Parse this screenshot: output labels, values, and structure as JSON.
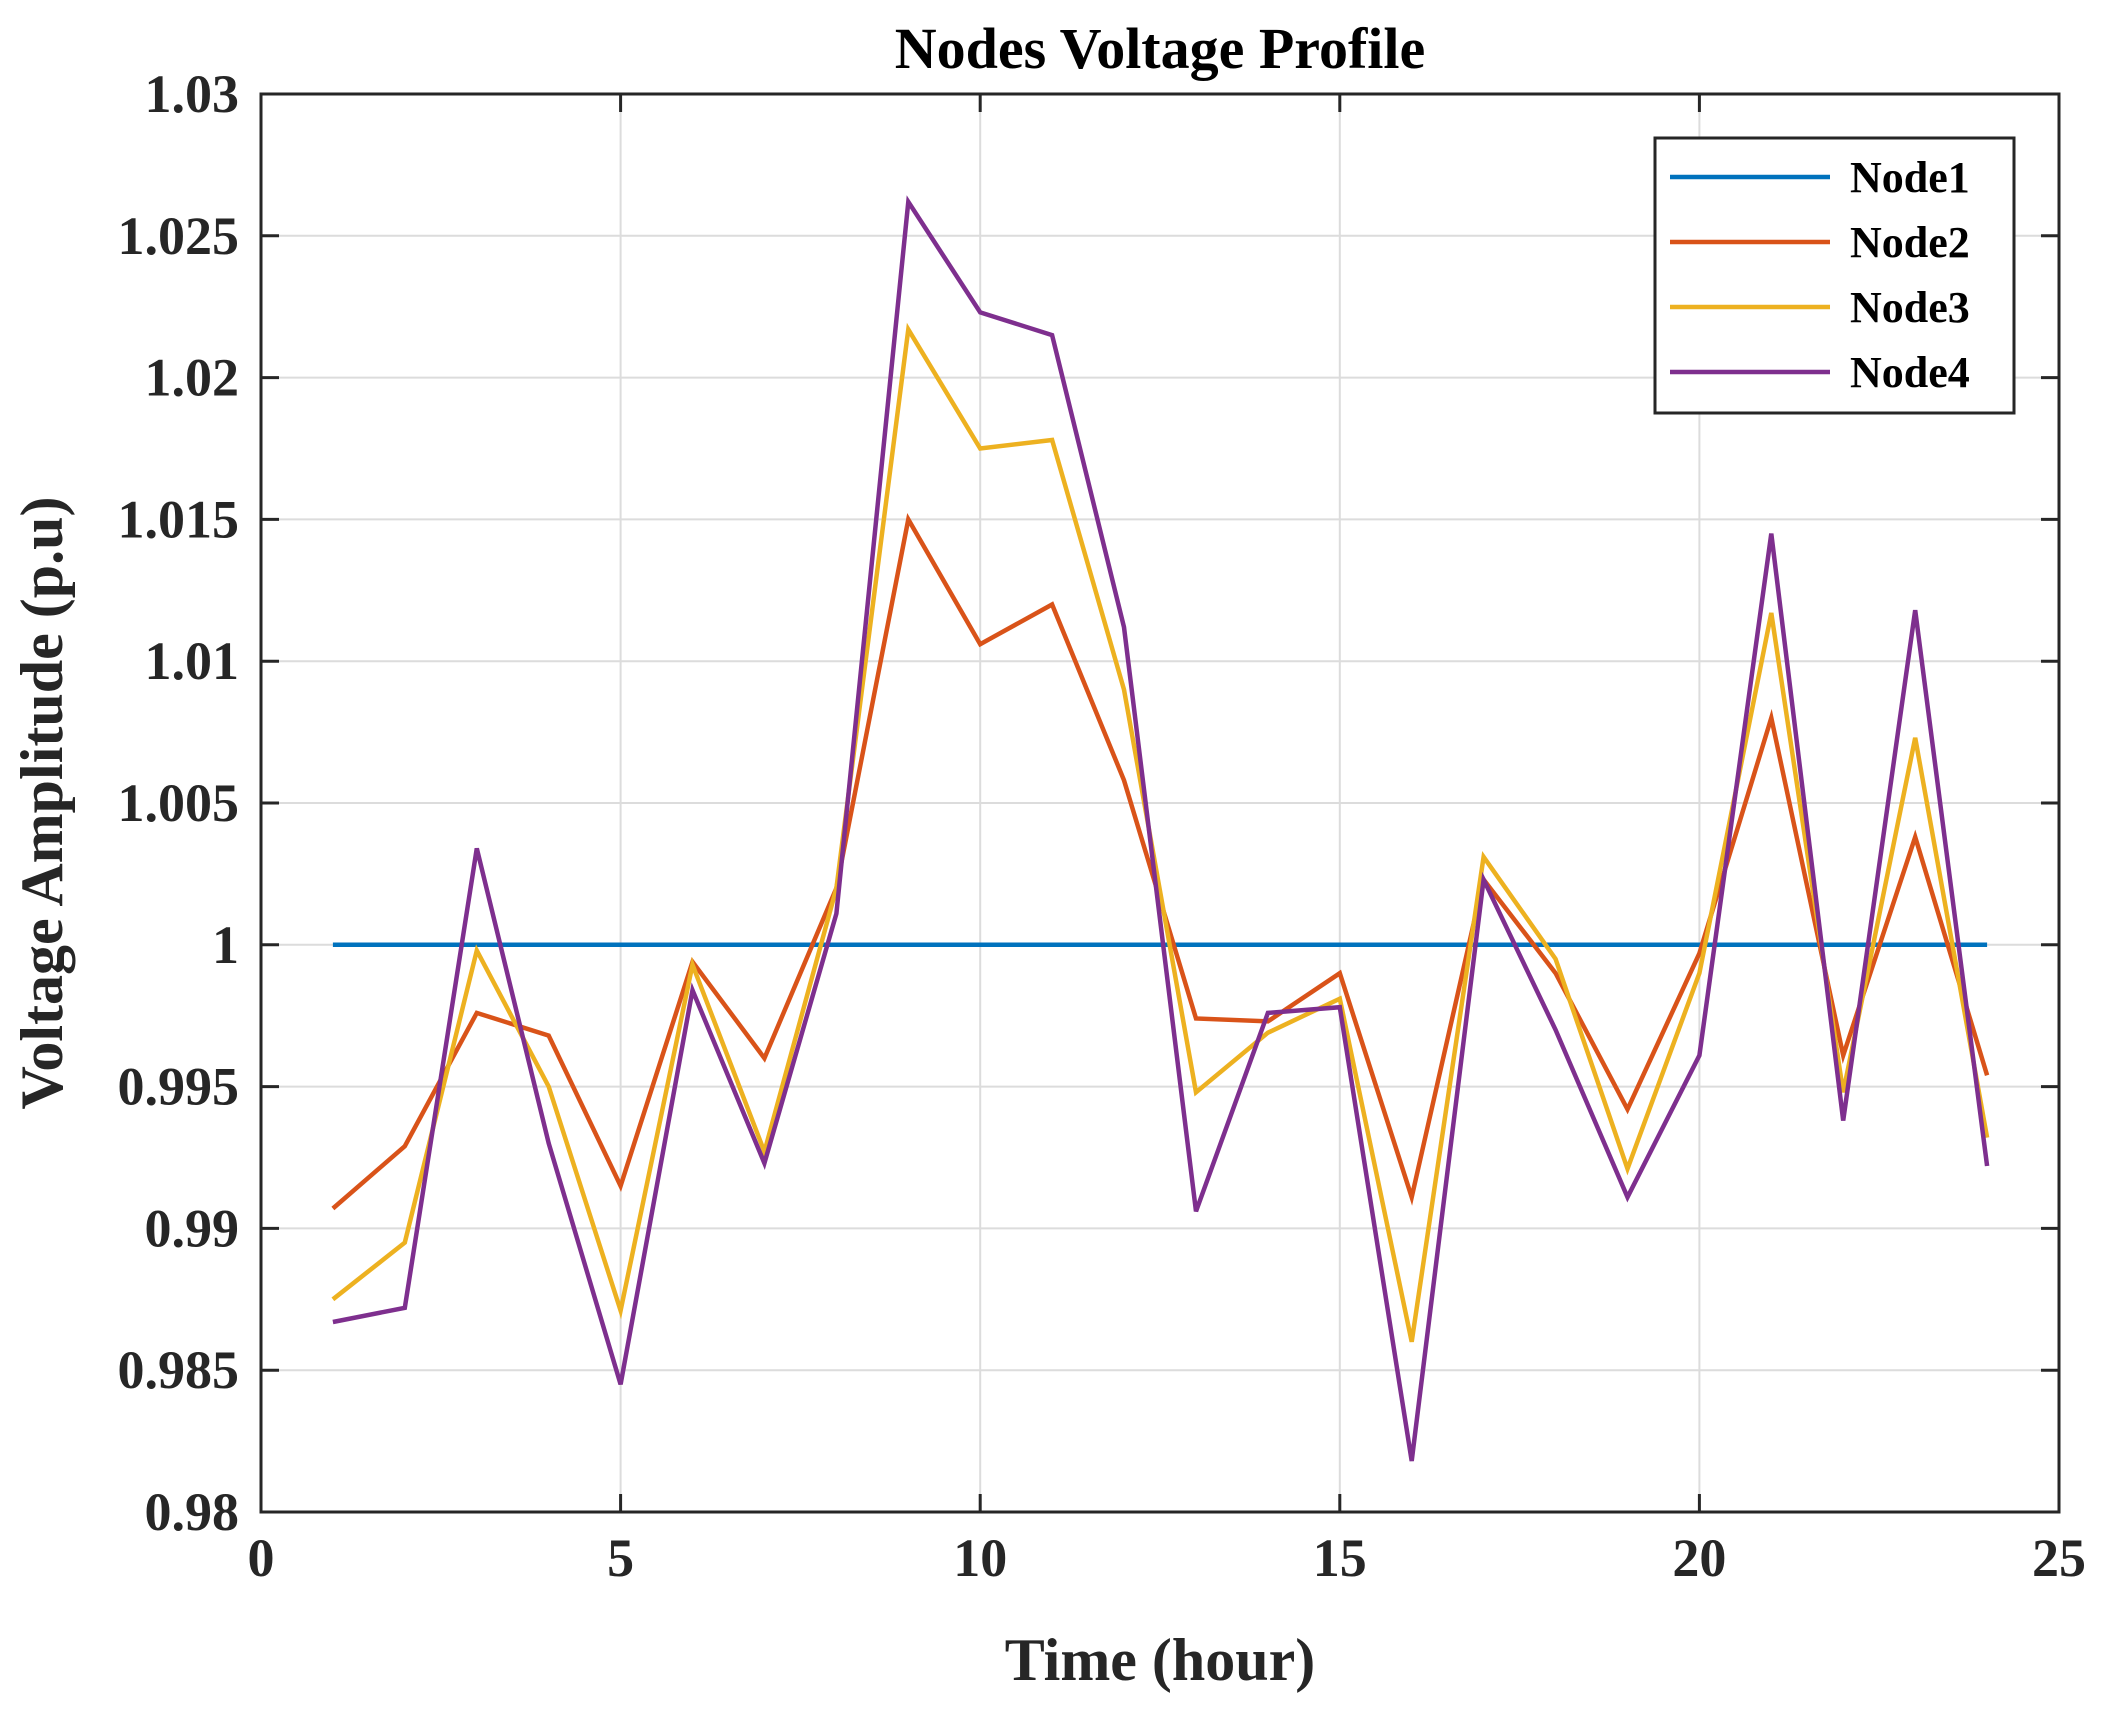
{
  "chart_data": {
    "type": "line",
    "title": "Nodes Voltage Profile",
    "xlabel": "Time (hour)",
    "ylabel": "Voltage Amplitude (p.u)",
    "xlim": [
      0,
      25
    ],
    "ylim": [
      0.98,
      1.03
    ],
    "xticks": [
      0,
      5,
      10,
      15,
      20,
      25
    ],
    "xtick_labels": [
      "0",
      "5",
      "10",
      "15",
      "20",
      "25"
    ],
    "yticks": [
      0.98,
      0.985,
      0.99,
      0.995,
      1.0,
      1.005,
      1.01,
      1.015,
      1.02,
      1.025,
      1.03
    ],
    "ytick_labels": [
      "0.98",
      "0.985",
      "0.99",
      "0.995",
      "1",
      "1.005",
      "1.01",
      "1.015",
      "1.02",
      "1.025",
      "1.03"
    ],
    "grid": true,
    "legend_position": "top-right",
    "x": [
      1,
      2,
      3,
      4,
      5,
      6,
      7,
      8,
      9,
      10,
      11,
      12,
      13,
      14,
      15,
      16,
      17,
      18,
      19,
      20,
      21,
      22,
      23,
      24
    ],
    "series": [
      {
        "name": "Node1",
        "color": "#0072BD",
        "values": [
          1.0,
          1.0,
          1.0,
          1.0,
          1.0,
          1.0,
          1.0,
          1.0,
          1.0,
          1.0,
          1.0,
          1.0,
          1.0,
          1.0,
          1.0,
          1.0,
          1.0,
          1.0,
          1.0,
          1.0,
          1.0,
          1.0,
          1.0,
          1.0
        ]
      },
      {
        "name": "Node2",
        "color": "#D95319",
        "values": [
          0.9907,
          0.9929,
          0.9976,
          0.9968,
          0.9915,
          0.9994,
          0.996,
          1.002,
          1.015,
          1.0106,
          1.012,
          1.0058,
          0.9974,
          0.9973,
          0.999,
          0.9911,
          1.0023,
          0.999,
          0.9942,
          0.9997,
          1.008,
          0.9961,
          1.0038,
          0.9954
        ]
      },
      {
        "name": "Node3",
        "color": "#EDB120",
        "values": [
          0.9875,
          0.9895,
          0.9998,
          0.995,
          0.9871,
          0.9993,
          0.9927,
          1.002,
          1.0217,
          1.0175,
          1.0178,
          1.009,
          0.9948,
          0.9969,
          0.9981,
          0.986,
          1.0031,
          0.9995,
          0.9921,
          0.999,
          1.0117,
          0.9948,
          1.0073,
          0.9932
        ]
      },
      {
        "name": "Node4",
        "color": "#7E2F8E",
        "values": [
          0.9867,
          0.9872,
          1.0034,
          0.993,
          0.9845,
          0.9984,
          0.9923,
          1.0011,
          1.0262,
          1.0223,
          1.0215,
          1.0112,
          0.9906,
          0.9976,
          0.9978,
          0.9818,
          1.0023,
          0.997,
          0.9911,
          0.9961,
          1.0145,
          0.9938,
          1.0118,
          0.9922
        ]
      }
    ]
  }
}
